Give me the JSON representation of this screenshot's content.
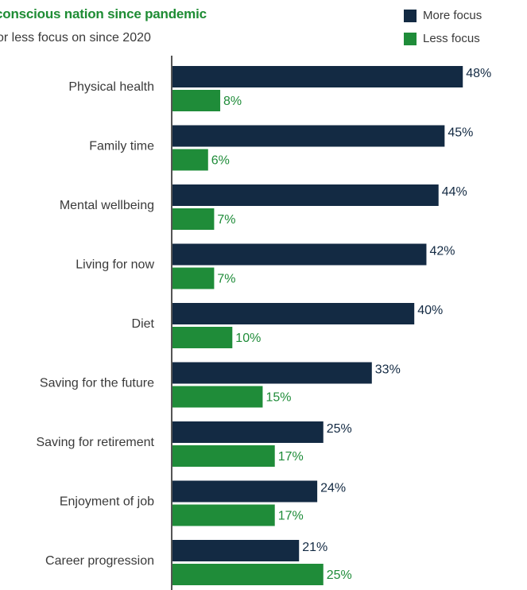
{
  "title": "conscious nation since pandemic",
  "subtitle": "or less focus on since 2020",
  "colors": {
    "more": "#132a43",
    "less": "#1f8c39",
    "title": "#1e8c34",
    "axis": "#555555",
    "text": "#3a3a3a"
  },
  "legend": [
    {
      "label": "More focus",
      "color": "#132a43"
    },
    {
      "label": "Less focus",
      "color": "#1f8c39"
    }
  ],
  "chart_data": {
    "type": "bar",
    "orientation": "horizontal",
    "categories": [
      "Physical health",
      "Family time",
      "Mental wellbeing",
      "Living for now",
      "Diet",
      "Saving for the future",
      "Saving for retirement",
      "Enjoyment of job",
      "Career progression"
    ],
    "series": [
      {
        "name": "More focus",
        "values": [
          48,
          45,
          44,
          42,
          40,
          33,
          25,
          24,
          21
        ],
        "labels": [
          "48%",
          "45%",
          "44%",
          "42%",
          "40%",
          "33%",
          "25%",
          "24%",
          "21%"
        ]
      },
      {
        "name": "Less focus",
        "values": [
          8,
          6,
          7,
          7,
          10,
          15,
          17,
          17,
          25
        ],
        "labels": [
          "8%",
          "6%",
          "7%",
          "7%",
          "10%",
          "15%",
          "17%",
          "17%",
          "25%"
        ]
      }
    ],
    "xlim": [
      0,
      50
    ],
    "grid": false,
    "legend_position": "top-right"
  }
}
